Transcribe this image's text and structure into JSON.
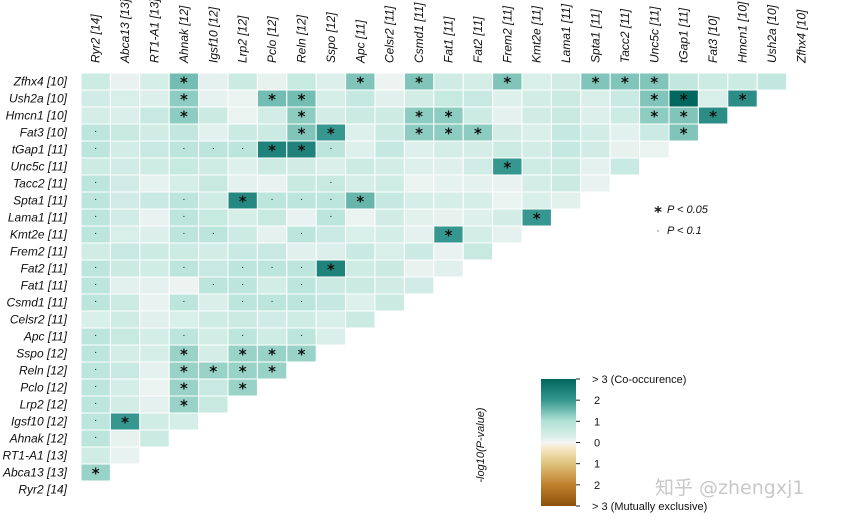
{
  "chart_data": {
    "type": "heatmap",
    "title": "",
    "genes": [
      "Ryr2 [14]",
      "Abca13 [13]",
      "RT1-A1 [13]",
      "Ahnak [12]",
      "Igsf10 [12]",
      "Lrp2 [12]",
      "Pclo [12]",
      "Reln [12]",
      "Sspo [12]",
      "Apc [11]",
      "Celsr2 [11]",
      "Csmd1 [11]",
      "Fat1 [11]",
      "Fat2 [11]",
      "Frem2 [11]",
      "Kmt2e [11]",
      "Lama1 [11]",
      "Spta1 [11]",
      "Tacc2 [11]",
      "Unc5c [11]",
      "tGap1 [11]",
      "Fat3 [10]",
      "Hmcn1 [10]",
      "Ush2a [10]",
      "Zfhx4 [10]"
    ],
    "value_label": "-log10(P-value)",
    "scale": {
      "min": -3,
      "max": 3
    },
    "colorbar": {
      "ticks": [
        {
          "v": 3,
          "t": "> 3 (Co-occurence)"
        },
        {
          "v": 2,
          "t": "2"
        },
        {
          "v": 1,
          "t": "1"
        },
        {
          "v": 0,
          "t": "0"
        },
        {
          "v": -1,
          "t": "1"
        },
        {
          "v": -2,
          "t": "2"
        },
        {
          "v": -3,
          "t": "> 3 (Mutually exclusive)"
        }
      ]
    },
    "significance_legend": {
      "star": "P < 0.05",
      "dot": "P < 0.1"
    },
    "cells": [
      [
        "Zfhx4 [10]",
        "Ahnak [12]",
        1.5,
        "star"
      ],
      [
        "Zfhx4 [10]",
        "Apc [11]",
        1.4,
        "star"
      ],
      [
        "Zfhx4 [10]",
        "Csmd1 [11]",
        1.4,
        "star"
      ],
      [
        "Zfhx4 [10]",
        "Frem2 [11]",
        1.4,
        "star"
      ],
      [
        "Zfhx4 [10]",
        "Spta1 [11]",
        1.4,
        "star"
      ],
      [
        "Zfhx4 [10]",
        "Tacc2 [11]",
        1.4,
        "star"
      ],
      [
        "Zfhx4 [10]",
        "Unc5c [11]",
        1.4,
        "star"
      ],
      [
        "Ush2a [10]",
        "Ahnak [12]",
        1.3,
        "star"
      ],
      [
        "Ush2a [10]",
        "Pclo [12]",
        1.5,
        "star"
      ],
      [
        "Ush2a [10]",
        "Reln [12]",
        1.5,
        "star"
      ],
      [
        "Ush2a [10]",
        "Unc5c [11]",
        1.4,
        "star"
      ],
      [
        "Ush2a [10]",
        "tGap1 [11]",
        3,
        "star"
      ],
      [
        "Ush2a [10]",
        "Hmcn1 [10]",
        2.2,
        "star"
      ],
      [
        "Hmcn1 [10]",
        "Ahnak [12]",
        1.3,
        "star"
      ],
      [
        "Hmcn1 [10]",
        "Reln [12]",
        1.3,
        "star"
      ],
      [
        "Hmcn1 [10]",
        "Csmd1 [11]",
        1.3,
        "star"
      ],
      [
        "Hmcn1 [10]",
        "Fat1 [11]",
        1.3,
        "star"
      ],
      [
        "Hmcn1 [10]",
        "Unc5c [11]",
        1.3,
        "star"
      ],
      [
        "Hmcn1 [10]",
        "tGap1 [11]",
        1.4,
        "star"
      ],
      [
        "Hmcn1 [10]",
        "Fat3 [10]",
        2.2,
        "star"
      ],
      [
        "Fat3 [10]",
        "Reln [12]",
        1.4,
        "star"
      ],
      [
        "Fat3 [10]",
        "Sspo [12]",
        2,
        "star"
      ],
      [
        "Fat3 [10]",
        "Csmd1 [11]",
        1.3,
        "star"
      ],
      [
        "Fat3 [10]",
        "Fat1 [11]",
        1.3,
        "star"
      ],
      [
        "Fat3 [10]",
        "Fat2 [11]",
        1.3,
        "star"
      ],
      [
        "Fat3 [10]",
        "tGap1 [11]",
        1.4,
        "star"
      ],
      [
        "tGap1 [11]",
        "Pclo [12]",
        2.4,
        "star"
      ],
      [
        "tGap1 [11]",
        "Reln [12]",
        2.4,
        "star"
      ],
      [
        "Unc5c [11]",
        "Frem2 [11]",
        2.0,
        "star"
      ],
      [
        "Spta1 [11]",
        "Lrp2 [12]",
        2.3,
        "star"
      ],
      [
        "Spta1 [11]",
        "Apc [11]",
        1.6,
        "star"
      ],
      [
        "Lama1 [11]",
        "Kmt2e [11]",
        2.0,
        "star"
      ],
      [
        "Kmt2e [11]",
        "Fat1 [11]",
        2.0,
        "star"
      ],
      [
        "Fat2 [11]",
        "Sspo [12]",
        2.4,
        "star"
      ],
      [
        "Sspo [12]",
        "Ahnak [12]",
        1.2,
        "star"
      ],
      [
        "Sspo [12]",
        "Lrp2 [12]",
        1.2,
        "star"
      ],
      [
        "Sspo [12]",
        "Pclo [12]",
        1.2,
        "star"
      ],
      [
        "Sspo [12]",
        "Reln [12]",
        1.2,
        "star"
      ],
      [
        "Reln [12]",
        "Ahnak [12]",
        1.2,
        "star"
      ],
      [
        "Reln [12]",
        "Igsf10 [12]",
        1.2,
        "star"
      ],
      [
        "Reln [12]",
        "Lrp2 [12]",
        1.2,
        "star"
      ],
      [
        "Reln [12]",
        "Pclo [12]",
        1.2,
        "star"
      ],
      [
        "Pclo [12]",
        "Ahnak [12]",
        1.2,
        "star"
      ],
      [
        "Pclo [12]",
        "Lrp2 [12]",
        1.2,
        "star"
      ],
      [
        "Lrp2 [12]",
        "Ahnak [12]",
        1.2,
        "star"
      ],
      [
        "Igsf10 [12]",
        "Abca13 [13]",
        2.0,
        "star"
      ],
      [
        "Abca13 [13]",
        "Ryr2 [14]",
        1.2,
        "star"
      ],
      [
        "tGap1 [11]",
        "Ryr2 [14]",
        0.8,
        "dot"
      ],
      [
        "tGap1 [11]",
        "Ahnak [12]",
        0.8,
        "dot"
      ],
      [
        "tGap1 [11]",
        "Igsf10 [12]",
        0.8,
        "dot"
      ],
      [
        "tGap1 [11]",
        "Lrp2 [12]",
        0.8,
        "dot"
      ],
      [
        "tGap1 [11]",
        "Sspo [12]",
        0.8,
        "dot"
      ],
      [
        "Tacc2 [11]",
        "Ryr2 [14]",
        0.8,
        "dot"
      ],
      [
        "Tacc2 [11]",
        "Sspo [12]",
        0.6,
        "dot"
      ],
      [
        "Spta1 [11]",
        "Ryr2 [14]",
        0.8,
        "dot"
      ],
      [
        "Spta1 [11]",
        "Ahnak [12]",
        0.8,
        "dot"
      ],
      [
        "Spta1 [11]",
        "Pclo [12]",
        0.8,
        "dot"
      ],
      [
        "Spta1 [11]",
        "Reln [12]",
        0.8,
        "dot"
      ],
      [
        "Spta1 [11]",
        "Sspo [12]",
        0.8,
        "dot"
      ],
      [
        "Lama1 [11]",
        "Ryr2 [14]",
        0.8,
        "dot"
      ],
      [
        "Lama1 [11]",
        "Ahnak [12]",
        0.8,
        "dot"
      ],
      [
        "Lama1 [11]",
        "Sspo [12]",
        0.8,
        "dot"
      ],
      [
        "Kmt2e [11]",
        "Ryr2 [14]",
        0.8,
        "dot"
      ],
      [
        "Kmt2e [11]",
        "Ahnak [12]",
        0.8,
        "dot"
      ],
      [
        "Kmt2e [11]",
        "Igsf10 [12]",
        0.8,
        "dot"
      ],
      [
        "Kmt2e [11]",
        "Reln [12]",
        0.8,
        "dot"
      ],
      [
        "Fat2 [11]",
        "Ryr2 [14]",
        0.8,
        "dot"
      ],
      [
        "Fat2 [11]",
        "Ahnak [12]",
        0.8,
        "dot"
      ],
      [
        "Fat2 [11]",
        "Lrp2 [12]",
        0.8,
        "dot"
      ],
      [
        "Fat2 [11]",
        "Pclo [12]",
        0.8,
        "dot"
      ],
      [
        "Fat2 [11]",
        "Reln [12]",
        0.8,
        "dot"
      ],
      [
        "Fat1 [11]",
        "Ryr2 [14]",
        0.8,
        "dot"
      ],
      [
        "Fat1 [11]",
        "Igsf10 [12]",
        0.8,
        "dot"
      ],
      [
        "Fat1 [11]",
        "Lrp2 [12]",
        0.8,
        "dot"
      ],
      [
        "Fat1 [11]",
        "Reln [12]",
        0.8,
        "dot"
      ],
      [
        "Csmd1 [11]",
        "Ryr2 [14]",
        0.8,
        "dot"
      ],
      [
        "Csmd1 [11]",
        "Ahnak [12]",
        0.8,
        "dot"
      ],
      [
        "Csmd1 [11]",
        "Lrp2 [12]",
        0.8,
        "dot"
      ],
      [
        "Csmd1 [11]",
        "Pclo [12]",
        0.8,
        "dot"
      ],
      [
        "Csmd1 [11]",
        "Reln [12]",
        0.8,
        "dot"
      ],
      [
        "Apc [11]",
        "Ryr2 [14]",
        0.8,
        "dot"
      ],
      [
        "Apc [11]",
        "Ahnak [12]",
        0.8,
        "dot"
      ],
      [
        "Apc [11]",
        "Lrp2 [12]",
        0.8,
        "dot"
      ],
      [
        "Apc [11]",
        "Reln [12]",
        0.8,
        "dot"
      ],
      [
        "Sspo [12]",
        "Ryr2 [14]",
        0.8,
        "dot"
      ],
      [
        "Reln [12]",
        "Ryr2 [14]",
        0.8,
        "dot"
      ],
      [
        "Pclo [12]",
        "Ryr2 [14]",
        0.8,
        "dot"
      ],
      [
        "Lrp2 [12]",
        "Ryr2 [14]",
        0.8,
        "dot"
      ],
      [
        "Igsf10 [12]",
        "Ryr2 [14]",
        0.8,
        "dot"
      ],
      [
        "Ahnak [12]",
        "Ryr2 [14]",
        0.8,
        "dot"
      ],
      [
        "Fat3 [10]",
        "Ryr2 [14]",
        0.8,
        "dot"
      ],
      [
        "Ush2a [10]",
        "Unc5c [11]",
        1.4,
        "star"
      ],
      [
        "Fat3 [10]",
        "Ahnak [12]",
        0.7,
        ""
      ],
      [
        "Zfhx4 [10]",
        "Fat3 [10]",
        0.5,
        ""
      ],
      [
        "Zfhx4 [10]",
        "Hmcn1 [10]",
        0.5,
        ""
      ],
      [
        "Zfhx4 [10]",
        "Ush2a [10]",
        0.7,
        ""
      ],
      [
        "Zfhx4 [10]",
        "tGap1 [11]",
        0.7,
        ""
      ]
    ]
  },
  "watermark": "知乎 @zhengxj1"
}
